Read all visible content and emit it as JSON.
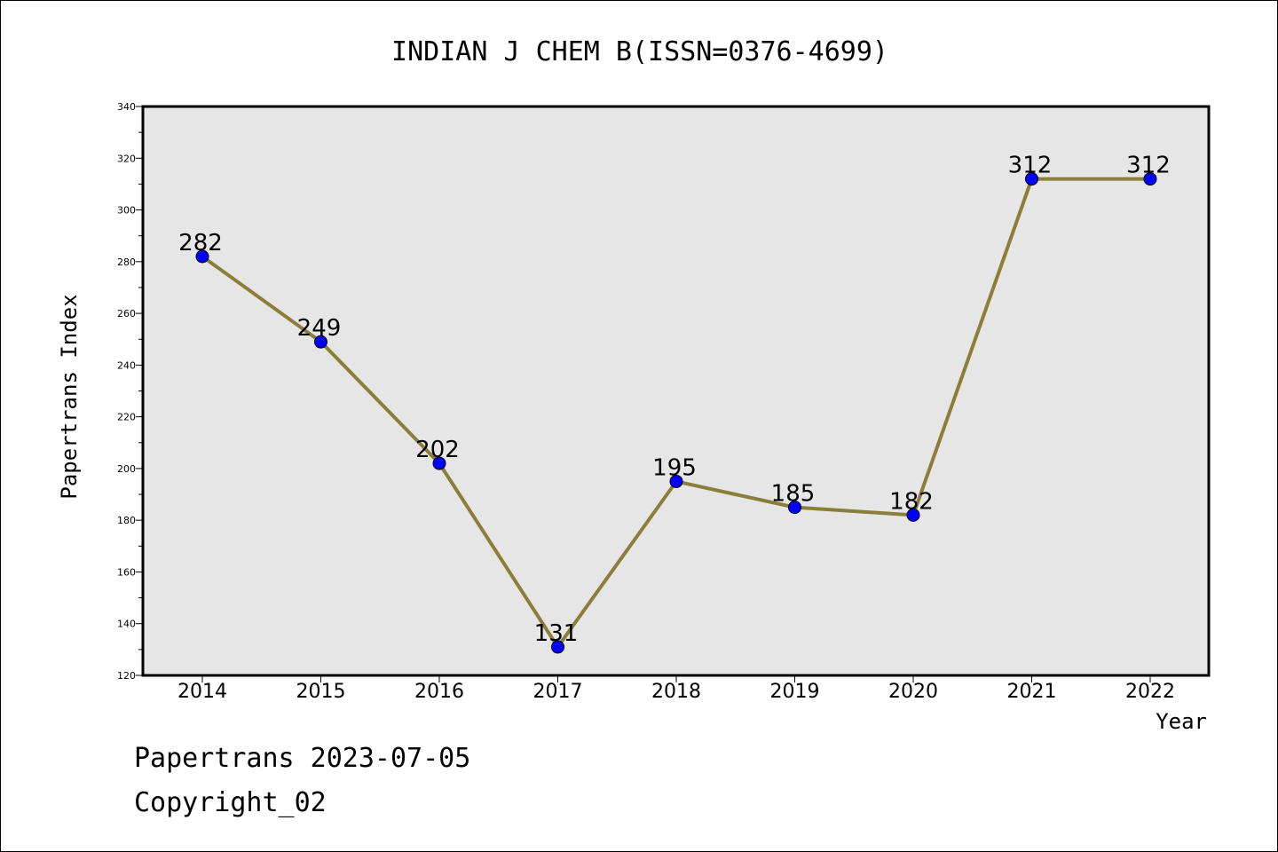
{
  "chart_data": {
    "type": "line",
    "title": "INDIAN J CHEM B(ISSN=0376-4699)",
    "xlabel": "Year",
    "ylabel": "Papertrans Index",
    "categories": [
      "2014",
      "2015",
      "2016",
      "2017",
      "2018",
      "2019",
      "2020",
      "2021",
      "2022"
    ],
    "values": [
      282,
      249,
      202,
      131,
      195,
      185,
      182,
      312,
      312
    ],
    "data_labels": [
      "282",
      "249",
      "202",
      "131",
      "195",
      "185",
      "182",
      "312",
      "312"
    ],
    "ylim": [
      120,
      340
    ],
    "yticks": [
      120,
      140,
      160,
      180,
      200,
      220,
      240,
      260,
      280,
      300,
      320,
      340
    ],
    "grid": false,
    "line_color": "#8B7D3A",
    "marker_color": "#0000FF",
    "plot_background": "#E6E6E6"
  },
  "footer": {
    "line1": "Papertrans 2023-07-05",
    "line2": "Copyright_02"
  }
}
